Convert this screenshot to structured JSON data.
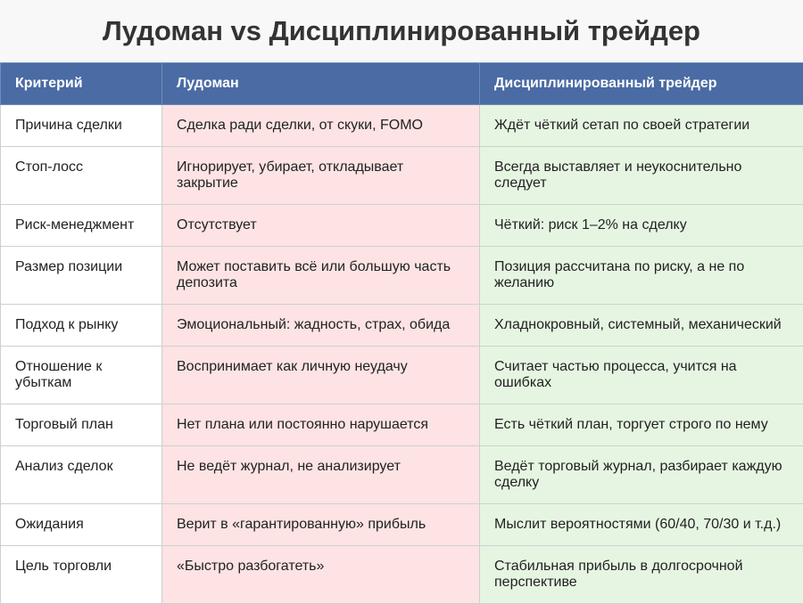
{
  "title": "Лудоман vs Дисциплинированный трейдер",
  "colors": {
    "header": "#4a6ba3",
    "gambler_column": "#fde3e3",
    "trader_column": "#e6f5e2"
  },
  "table": {
    "headers": [
      "Критерий",
      "Лудоман",
      "Дисциплинированный трейдер"
    ],
    "rows": [
      [
        "Причина сделки",
        "Сделка ради сделки, от скуки, FOMO",
        "Ждёт чёткий сетап по своей стратегии"
      ],
      [
        "Стоп-лосс",
        "Игнорирует, убирает, откладывает закрытие",
        "Всегда выставляет и неукоснительно следует"
      ],
      [
        "Риск-менеджмент",
        "Отсутствует",
        "Чёткий: риск 1–2% на сделку"
      ],
      [
        "Размер позиции",
        "Может поставить всё или большую часть депозита",
        "Позиция рассчитана по риску, а не по желанию"
      ],
      [
        "Подход к рынку",
        "Эмоциональный: жадность, страх, обида",
        "Хладнокровный, системный, механический"
      ],
      [
        "Отношение к убыткам",
        "Воспринимает как личную неудачу",
        "Считает частью процесса, учится на ошибках"
      ],
      [
        "Торговый план",
        "Нет плана или постоянно нарушается",
        "Есть чёткий план, торгует строго по нему"
      ],
      [
        "Анализ сделок",
        "Не ведёт журнал, не анализирует",
        "Ведёт торговый журнал, разбирает каждую сделку"
      ],
      [
        "Ожидания",
        "Верит в «гарантированную» прибыль",
        "Мыслит вероятностями (60/40, 70/30 и т.д.)"
      ],
      [
        "Цель торговли",
        "«Быстро разбогатеть»",
        "Стабильная прибыль в долгосрочной перспективе"
      ]
    ]
  }
}
